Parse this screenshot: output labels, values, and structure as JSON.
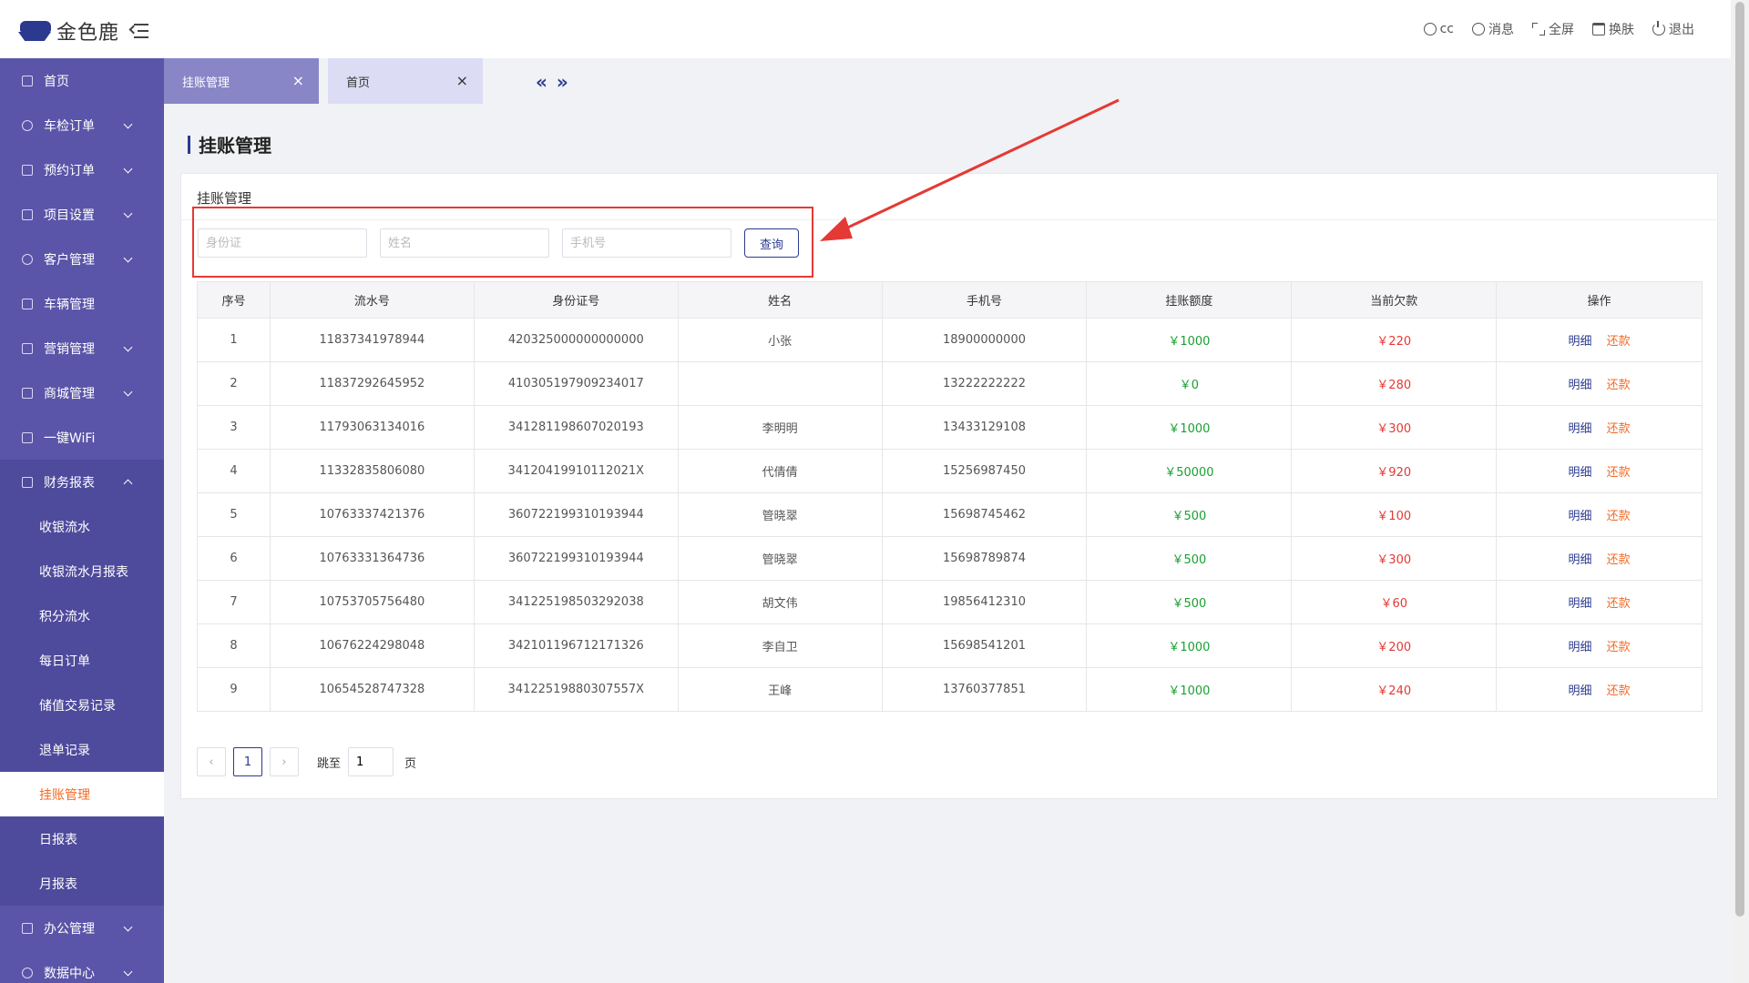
{
  "app": {
    "title": "金色鹿"
  },
  "header": {
    "items": [
      {
        "label": "cc",
        "icon": "user-icon"
      },
      {
        "label": "消息",
        "icon": "message-icon"
      },
      {
        "label": "全屏",
        "icon": "fullscreen-icon"
      },
      {
        "label": "换肤",
        "icon": "skin-icon"
      },
      {
        "label": "退出",
        "icon": "power-icon"
      }
    ]
  },
  "sidebar": {
    "items": [
      {
        "label": "首页"
      },
      {
        "label": "车检订单"
      },
      {
        "label": "预约订单"
      },
      {
        "label": "项目设置"
      },
      {
        "label": "客户管理"
      },
      {
        "label": "车辆管理"
      },
      {
        "label": "营销管理"
      },
      {
        "label": "商城管理"
      },
      {
        "label": "一键WiFi"
      },
      {
        "label": "财务报表"
      },
      {
        "label": "办公管理"
      },
      {
        "label": "数据中心"
      }
    ],
    "finance_sub": [
      {
        "label": "收银流水"
      },
      {
        "label": "收银流水月报表"
      },
      {
        "label": "积分流水"
      },
      {
        "label": "每日订单"
      },
      {
        "label": "储值交易记录"
      },
      {
        "label": "退单记录"
      },
      {
        "label": "挂账管理"
      },
      {
        "label": "日报表"
      },
      {
        "label": "月报表"
      }
    ]
  },
  "tabs": [
    {
      "label": "挂账管理"
    },
    {
      "label": "首页"
    }
  ],
  "tab_nav": {
    "prev": "«",
    "next": "»"
  },
  "page": {
    "title": "挂账管理",
    "card_title": "挂账管理"
  },
  "search": {
    "id_placeholder": "身份证",
    "name_placeholder": "姓名",
    "phone_placeholder": "手机号",
    "query_label": "查询"
  },
  "table": {
    "headers": [
      "序号",
      "流水号",
      "身份证号",
      "姓名",
      "手机号",
      "挂账额度",
      "当前欠款",
      "操作"
    ],
    "detail_label": "明细",
    "refund_label": "还款",
    "rows": [
      [
        "1",
        "11837341978944",
        "420325000000000000",
        "小张",
        "18900000000",
        "￥1000",
        "￥220"
      ],
      [
        "2",
        "11837292645952",
        "410305197909234017",
        "",
        "13222222222",
        "￥0",
        "￥280"
      ],
      [
        "3",
        "11793063134016",
        "341281198607020193",
        "李明明",
        "13433129108",
        "￥1000",
        "￥300"
      ],
      [
        "4",
        "11332835806080",
        "34120419910112021X",
        "代倩倩",
        "15256987450",
        "￥50000",
        "￥920"
      ],
      [
        "5",
        "10763337421376",
        "360722199310193944",
        "管晓翠",
        "15698745462",
        "￥500",
        "￥100"
      ],
      [
        "6",
        "10763331364736",
        "360722199310193944",
        "管晓翠",
        "15698789874",
        "￥500",
        "￥300"
      ],
      [
        "7",
        "10753705756480",
        "341225198503292038",
        "胡文伟",
        "19856412310",
        "￥500",
        "￥60"
      ],
      [
        "8",
        "10676224298048",
        "342101196712171326",
        "李自卫",
        "15698541201",
        "￥1000",
        "￥200"
      ],
      [
        "9",
        "10654528747328",
        "34122519880307557X",
        "王峰",
        "13760377851",
        "￥1000",
        "￥240"
      ]
    ]
  },
  "pagination": {
    "current_page": "1",
    "jump_label": "跳至",
    "jump_value": "1",
    "page_suffix": "页"
  },
  "colors": {
    "sidebar_bg": "#5a55a8",
    "accent": "#2b3a8f",
    "active_menu_text": "#f46b25",
    "limit_green": "#19a032",
    "debt_red": "#e53935",
    "annotation_red": "#e53935"
  }
}
